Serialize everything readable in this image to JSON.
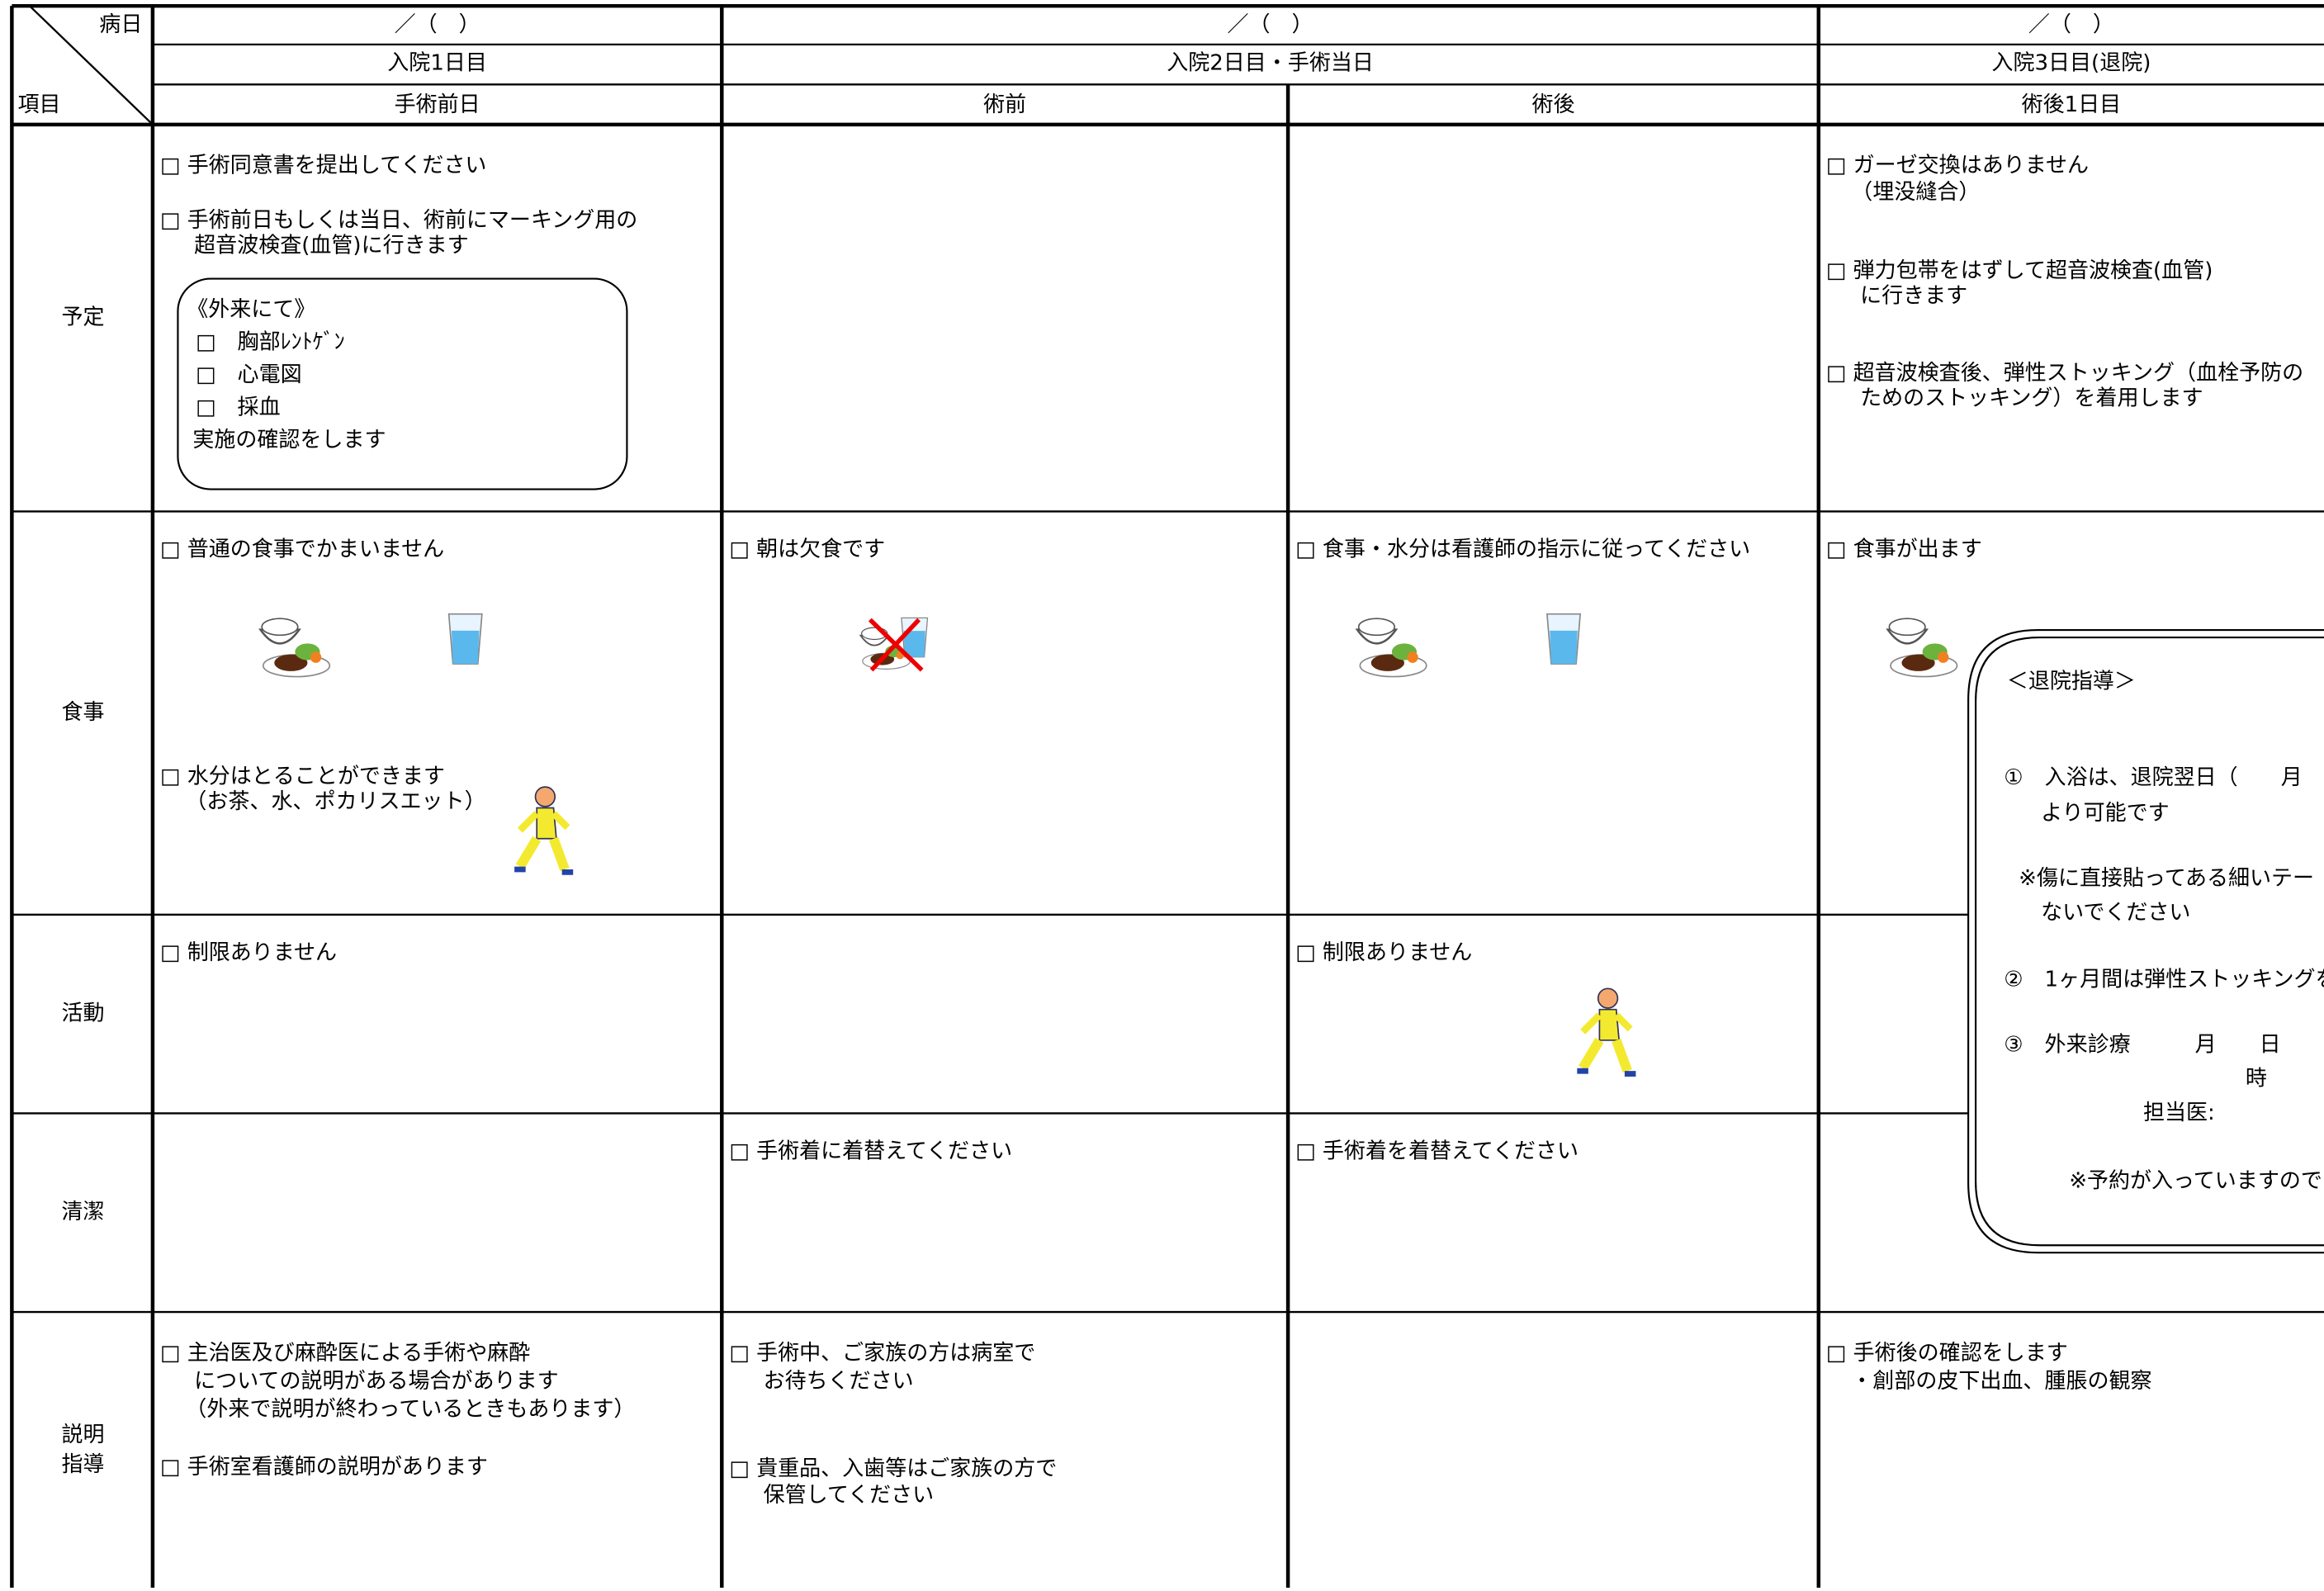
{
  "header": {
    "corner_top": "病日",
    "corner_bottom": "項目",
    "dates": [
      "／（　）",
      "／（　）",
      "／（　）"
    ],
    "days": [
      "入院1日目",
      "入院2日目・手術当日",
      "入院3日目(退院)"
    ],
    "phases": [
      "手術前日",
      "術前",
      "術後",
      "術後1日目"
    ]
  },
  "rows": [
    {
      "label": "予定",
      "cells": [
        [
          "□ 手術同意書を提出してください",
          "□ 手術前日もしくは当日、術前にマーキング用の",
          "超音波検査(血管)に行きます"
        ],
        [],
        [],
        [
          "□ ガーゼ交換はありません",
          "（埋没縫合）",
          "□ 弾力包帯をはずして超音波検査(血管)",
          "に行きます",
          "□ 超音波検査後、弾性ストッキング（血栓予防の",
          "ためのストッキング）を着用します"
        ]
      ]
    },
    {
      "label": "食事",
      "cells": [
        [
          "□ 普通の食事でかまいません",
          "□ 水分はとることができます",
          "（お茶、水、ポカリスエット）"
        ],
        [
          "□ 朝は欠食です"
        ],
        [
          "□ 食事・水分は看護師の指示に従ってください"
        ],
        [
          "□ 食事が出ます"
        ]
      ]
    },
    {
      "label": "活動",
      "cells": [
        [
          "□ 制限ありません"
        ],
        [],
        [
          "□ 制限ありません"
        ],
        []
      ]
    },
    {
      "label": "清潔",
      "cells": [
        [],
        [
          "□ 手術着に着替えてください"
        ],
        [
          "□ 手術着を着替えてください"
        ],
        []
      ]
    },
    {
      "label": "説明指導",
      "cells": [
        [
          "□ 主治医及び麻酔医による手術や麻酔",
          "についての説明がある場合があります",
          "（外来で説明が終わっているときもあります）",
          "□ 手術室看護師の説明があります"
        ],
        [
          "□ 手術中、ご家族の方は病室で",
          "お待ちください",
          "□ 貴重品、入歯等はご家族の方で",
          "保管してください"
        ],
        [],
        [
          "□ 手術後の確認をします",
          "・創部の皮下出血、腫脹の観察"
        ]
      ]
    }
  ],
  "outpatient_box": {
    "title": "《外来にて》",
    "items": [
      "□　胸部ﾚﾝﾄｹﾞﾝ",
      "□　心電図",
      "□　採血"
    ],
    "note": "実施の確認をします"
  },
  "discharge_box": {
    "title": "＜退院指導＞",
    "lines": [
      "①　入浴は、退院翌日（　　月",
      "より可能です",
      "※傷に直接貼ってある細いテー",
      "ないでください",
      "②　1ヶ月間は弾性ストッキングを",
      "③　外来診療　　　月　　日",
      "時",
      "担当医:",
      "※予約が入っていますので"
    ]
  }
}
